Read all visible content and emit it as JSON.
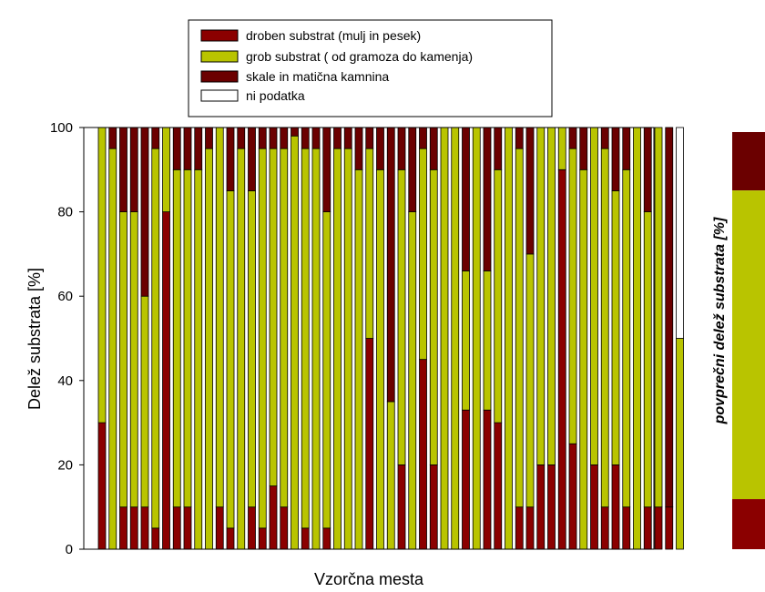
{
  "chart_data": {
    "type": "bar",
    "stacked": true,
    "xlabel": "Vzorčna mesta",
    "ylabel": "Delež  substrata [%]",
    "ylim": [
      0,
      100
    ],
    "yticks": [
      0,
      20,
      40,
      60,
      80,
      100
    ],
    "legend_position": "top",
    "series": [
      {
        "name": "droben substrat (mulj in pesek)",
        "color": "#8b0000",
        "values": [
          30,
          0,
          10,
          10,
          10,
          5,
          80,
          10,
          10,
          0,
          0,
          10,
          5,
          0,
          10,
          5,
          15,
          10,
          0,
          5,
          0,
          5,
          0,
          0,
          0,
          50,
          0,
          0,
          20,
          0,
          45,
          20,
          0,
          0,
          33,
          0,
          33,
          30,
          0,
          10,
          10,
          20,
          20,
          90,
          25,
          0,
          20,
          10,
          20,
          10,
          0,
          10,
          10,
          10,
          0
        ]
      },
      {
        "name": "grob substrat ( od gramoza do kamenja)",
        "color": "#b9c400",
        "values": [
          70,
          95,
          70,
          70,
          50,
          90,
          20,
          80,
          80,
          90,
          95,
          90,
          80,
          95,
          75,
          90,
          80,
          85,
          98,
          90,
          95,
          75,
          95,
          95,
          90,
          45,
          90,
          35,
          70,
          80,
          50,
          70,
          100,
          100,
          33,
          100,
          33,
          60,
          100,
          85,
          60,
          80,
          80,
          10,
          70,
          90,
          80,
          85,
          65,
          80,
          100,
          70,
          90,
          0,
          50
        ]
      },
      {
        "name": "skale in matična kamnina",
        "color": "#6b0000",
        "values": [
          0,
          5,
          20,
          20,
          40,
          5,
          0,
          10,
          10,
          10,
          5,
          0,
          15,
          5,
          15,
          5,
          5,
          5,
          2,
          5,
          5,
          20,
          5,
          5,
          10,
          5,
          10,
          65,
          10,
          20,
          5,
          10,
          0,
          0,
          34,
          0,
          34,
          10,
          0,
          5,
          30,
          0,
          0,
          0,
          5,
          10,
          0,
          5,
          15,
          10,
          0,
          20,
          0,
          90,
          0
        ]
      },
      {
        "name": "ni podatka",
        "color": "#ffffff",
        "values": [
          0,
          0,
          0,
          0,
          0,
          0,
          0,
          0,
          0,
          0,
          0,
          0,
          0,
          0,
          0,
          0,
          0,
          0,
          0,
          0,
          0,
          0,
          0,
          0,
          0,
          0,
          0,
          0,
          0,
          0,
          0,
          0,
          0,
          0,
          0,
          0,
          0,
          0,
          0,
          0,
          0,
          0,
          0,
          0,
          0,
          0,
          0,
          0,
          0,
          0,
          0,
          0,
          0,
          0,
          50
        ]
      }
    ],
    "side_bar": {
      "label": "povprečni delež substrata [%]",
      "values": [
        14,
        74,
        12
      ]
    }
  }
}
